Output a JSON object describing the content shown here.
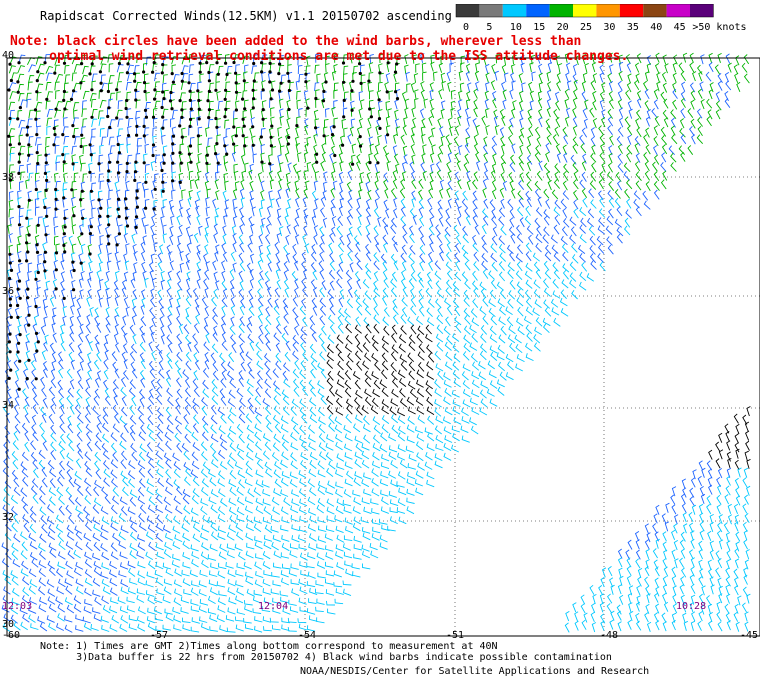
{
  "title": "Rapidscat Corrected Winds(12.5KM) v1.1 20150702 ascending",
  "note_line1": "Note: black circles have been added to the wind barbs, wherever less than",
  "note_line2": "     optimal wind retrieval conditions are met due to the ISS attitude changes.",
  "scale": {
    "labels": [
      "0",
      "5",
      "10",
      "15",
      "20",
      "25",
      "30",
      "35",
      "40",
      "45",
      ">50 knots"
    ],
    "colors": [
      "#3a3a3a",
      "#7a7a7a",
      "#00c8ff",
      "#0064ff",
      "#00b400",
      "#ffff00",
      "#ff9600",
      "#ff0000",
      "#8b4513",
      "#c800c8",
      "#5a007a"
    ]
  },
  "lat_labels": [
    "40",
    "38",
    "36",
    "34",
    "32",
    "30"
  ],
  "lon_labels": [
    "-60",
    "-57",
    "-54",
    "-51",
    "-48",
    "-45"
  ],
  "time_labels": [
    "12:03",
    "12:04",
    "10:28"
  ],
  "footnote_line1": "Note: 1) Times are GMT 2)Times along bottom correspond to measurement at 40N",
  "footnote_line2": "      3)Data buffer is 22 hrs from 20150702 4) Black wind barbs indicate possible contamination",
  "credit": "NOAA/NESDIS/Center for Satellite Applications and Research"
}
